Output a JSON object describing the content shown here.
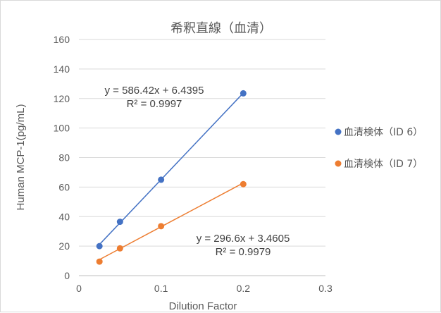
{
  "chart_data": {
    "type": "scatter",
    "title": "希釈直線（血清）",
    "xlabel": "Dilution Factor",
    "ylabel": "Human MCP-1(pg/mL)",
    "xlim": [
      0,
      0.3
    ],
    "ylim": [
      0,
      160
    ],
    "x_ticks": [
      0,
      0.1,
      0.2,
      0.3
    ],
    "y_ticks": [
      0,
      20,
      40,
      60,
      80,
      100,
      120,
      140,
      160
    ],
    "x_tick_labels": [
      "0",
      "0.1",
      "0.2",
      "0.3"
    ],
    "y_tick_labels": [
      "0",
      "20",
      "40",
      "60",
      "80",
      "100",
      "120",
      "140",
      "160"
    ],
    "grid": "horizontal",
    "legend_position": "right",
    "series": [
      {
        "name": "血清検体（ID 6）",
        "color": "#4472c4",
        "points": [
          {
            "x": 0.025,
            "y": 20
          },
          {
            "x": 0.05,
            "y": 36.5
          },
          {
            "x": 0.1,
            "y": 65
          },
          {
            "x": 0.2,
            "y": 123.5
          }
        ],
        "trendline": {
          "slope": 586.42,
          "intercept": 6.4395,
          "equation": "y = 586.42x + 6.4395",
          "r2": "R² = 0.9997"
        }
      },
      {
        "name": "血清検体（ID 7）",
        "color": "#ed7d31",
        "points": [
          {
            "x": 0.025,
            "y": 9.5
          },
          {
            "x": 0.05,
            "y": 18.5
          },
          {
            "x": 0.1,
            "y": 33.5
          },
          {
            "x": 0.2,
            "y": 62
          }
        ],
        "trendline": {
          "slope": 296.6,
          "intercept": 3.4605,
          "equation": "y = 296.6x + 3.4605",
          "r2": "R² = 0.9979"
        }
      }
    ]
  }
}
